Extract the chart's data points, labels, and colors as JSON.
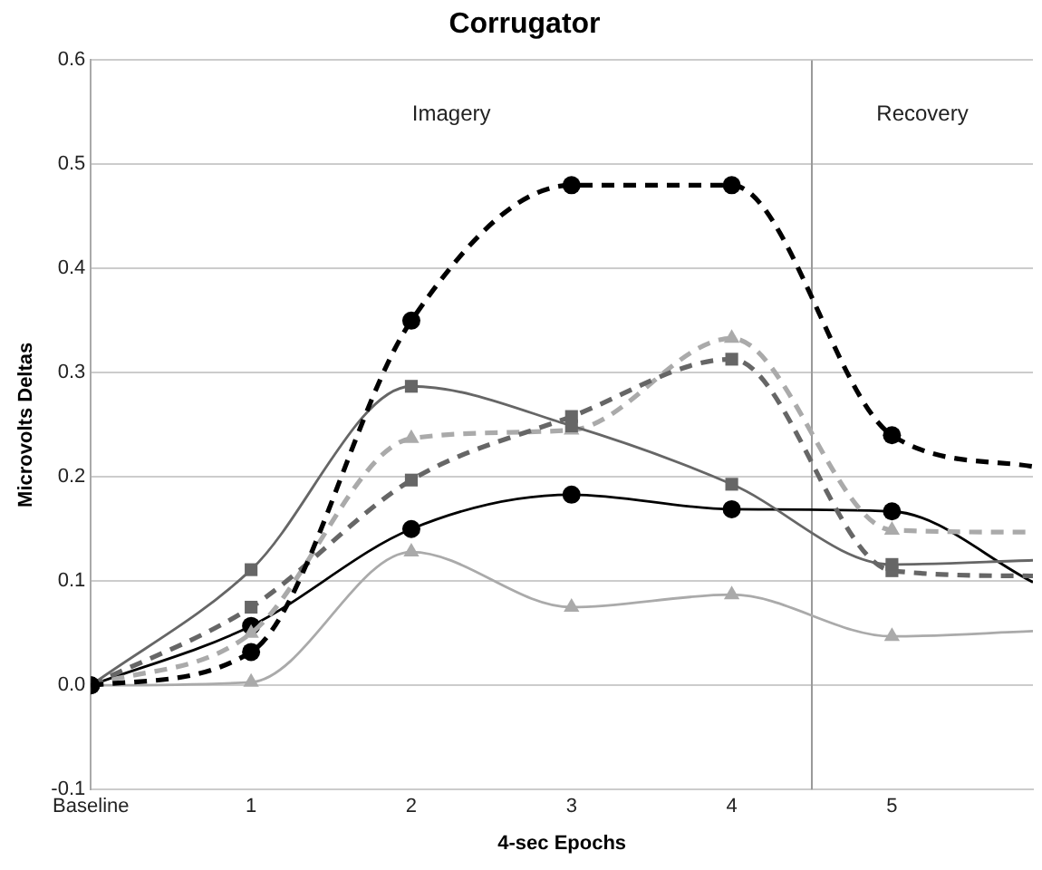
{
  "chart_data": {
    "type": "line",
    "title": "Corrugator",
    "xlabel": "4-sec Epochs",
    "ylabel": "Microvolts Deltas",
    "x": [
      0,
      1,
      2,
      3,
      4,
      5,
      5.88
    ],
    "xlim": [
      0,
      5.88
    ],
    "xticks": [
      {
        "value": 0,
        "label": "Baseline"
      },
      1,
      2,
      3,
      4,
      5
    ],
    "ylim": [
      -0.1,
      0.6
    ],
    "yticks": [
      {
        "value": -0.1,
        "label": "-0.1"
      },
      {
        "value": 0,
        "label": "0.0"
      },
      {
        "value": 0.1,
        "label": "0.1"
      },
      {
        "value": 0.2,
        "label": "0.2"
      },
      {
        "value": 0.3,
        "label": "0.3"
      },
      {
        "value": 0.4,
        "label": "0.4"
      },
      {
        "value": 0.5,
        "label": "0.5"
      },
      {
        "value": 0.6,
        "label": "0.6"
      }
    ],
    "grid": "y",
    "legend": false,
    "series": [
      {
        "color": "#000000",
        "marker": "circle",
        "line_style": "dashed",
        "values": [
          0,
          0.032,
          0.35,
          0.48,
          0.48,
          0.24,
          0.21
        ]
      },
      {
        "color": "#666666",
        "marker": "square",
        "line_style": "solid",
        "values": [
          0,
          0.111,
          0.287,
          0.249,
          0.193,
          0.116,
          0.12
        ]
      },
      {
        "color": "#666666",
        "marker": "square",
        "line_style": "dashed",
        "values": [
          0,
          0.075,
          0.197,
          0.258,
          0.313,
          0.11,
          0.105
        ]
      },
      {
        "color": "#aaaaaa",
        "marker": "triangle",
        "line_style": "dashed",
        "values": [
          0,
          0.05,
          0.237,
          0.245,
          0.333,
          0.149,
          0.147
        ]
      },
      {
        "color": "#000000",
        "marker": "circle",
        "line_style": "solid",
        "values": [
          0,
          0.057,
          0.15,
          0.183,
          0.169,
          0.167,
          0.099
        ]
      },
      {
        "color": "#aaaaaa",
        "marker": "triangle",
        "line_style": "solid",
        "values": [
          0,
          0.003,
          0.128,
          0.075,
          0.087,
          0.047,
          0.052
        ]
      }
    ],
    "ref_lines": [
      {
        "axis": "x",
        "value": 4.5,
        "color": "#999999"
      }
    ],
    "annotations": [
      "Imagery",
      "Recovery"
    ]
  }
}
